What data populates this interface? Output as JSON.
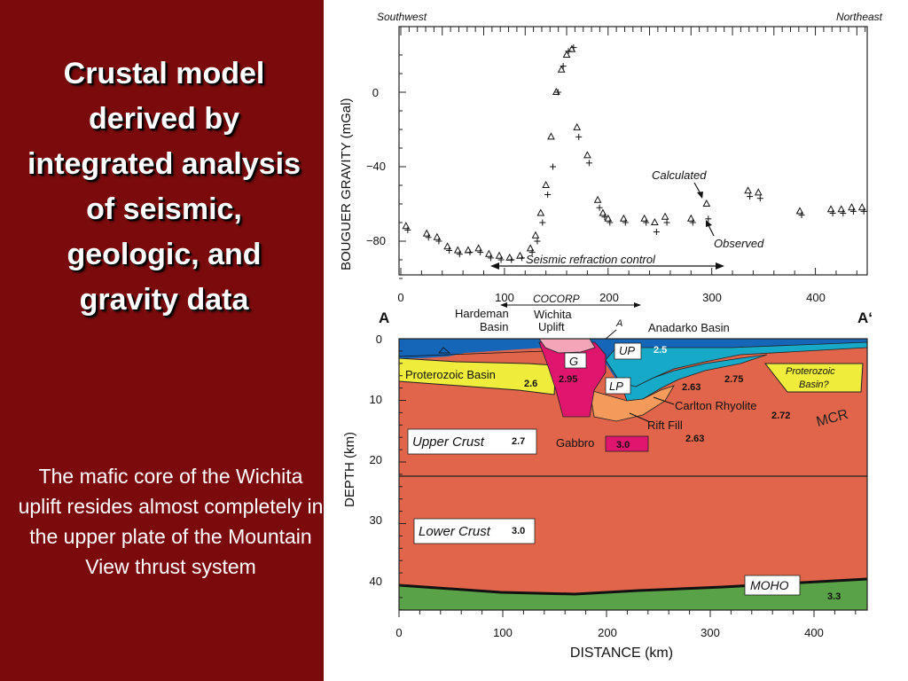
{
  "slide": {
    "title": "Crustal model derived by integrated analysis of seismic, geologic, and gravity data",
    "caption": "The mafic core of the Wichita uplift resides almost completely in the upper plate of the Mountain View thrust system"
  },
  "colors": {
    "background": "#7a0a0c",
    "sediment": "#1565b8",
    "upper_crust": "#e0654a",
    "lower_crust": "#e0654a",
    "mantle": "#5aa247",
    "proterozoic_basin": "#f0ec3c",
    "gabbro": "#e0156e",
    "teal": "#16a9c8",
    "rift_fill": "#f49a5a"
  },
  "gravity_panel": {
    "left_label": "Southwest",
    "right_label": "Northeast",
    "ylabel": "BOUGUER GRAVITY (mGal)",
    "y_ticks": [
      "0",
      "−40",
      "−80"
    ],
    "x_ticks": [
      "0",
      "100",
      "200",
      "300",
      "400"
    ],
    "calculated_label": "Calculated",
    "observed_label": "Observed",
    "seismic_label": "Seismic refraction control",
    "cocorp_label": "COCORP"
  },
  "section_panel": {
    "label_a": "A",
    "label_a_prime": "A‘",
    "hardeman_basin": "Hardeman Basin",
    "wichita_uplift": "Wichita Uplift",
    "point_a": "A",
    "anadarko_basin": "Anadarko Basin",
    "proterozoic_basin": "Proterozoic Basin",
    "proterozoic_basin_q": "Proterozoic Basin?",
    "upper_crust": "Upper Crust",
    "lower_crust": "Lower Crust",
    "moho": "MOHO",
    "mcr": "MCR",
    "gabbro": "Gabbro",
    "g": "G",
    "up": "UP",
    "lp": "LP",
    "carlton_rhyolite": "Carlton Rhyolite",
    "rift_fill": "Rift Fill",
    "densities": {
      "basin": "2.6",
      "g_core": "2.95",
      "up": "2.5",
      "d263a": "2.63",
      "d275": "2.75",
      "d272": "2.72",
      "d263b": "2.63",
      "upper_crust": "2.7",
      "lower_crust": "3.0",
      "gabbro": "3.0",
      "mantle": "3.3"
    },
    "ylabel": "DEPTH (km)",
    "xlabel": "DISTANCE (km)",
    "y_ticks": [
      "0",
      "10",
      "20",
      "30",
      "40"
    ],
    "x_ticks": [
      "0",
      "100",
      "200",
      "300",
      "400"
    ]
  },
  "chart_data": {
    "type": "scatter",
    "xlabel": "",
    "ylabel": "BOUGUER GRAVITY (mGal)",
    "xlim": [
      0,
      450
    ],
    "ylim": [
      -100,
      25
    ],
    "series": [
      {
        "name": "Calculated",
        "x": [
          5,
          25,
          35,
          45,
          55,
          65,
          75,
          85,
          95,
          105,
          115,
          125,
          130,
          135,
          140,
          145,
          150,
          155,
          160,
          165,
          170,
          180,
          190,
          195,
          200,
          215,
          235,
          245,
          255,
          280,
          295,
          335,
          345,
          385,
          415,
          425,
          435,
          445
        ],
        "y": [
          -72,
          -76,
          -78,
          -83,
          -85,
          -85,
          -84,
          -87,
          -88,
          -89,
          -88,
          -84,
          -77,
          -65,
          -50,
          -24,
          0,
          12,
          20,
          23,
          -19,
          -34,
          -58,
          -65,
          -68,
          -68,
          -68,
          -70,
          -67,
          -68,
          -60,
          -53,
          -54,
          -64,
          -63,
          -63,
          -62,
          -62
        ]
      },
      {
        "name": "Observed",
        "x": [
          5,
          25,
          35,
          45,
          55,
          65,
          75,
          85,
          95,
          105,
          115,
          125,
          130,
          135,
          140,
          145,
          150,
          155,
          160,
          165,
          170,
          180,
          190,
          195,
          200,
          215,
          235,
          245,
          255,
          280,
          295,
          335,
          345,
          385,
          415,
          425,
          435,
          445
        ],
        "y": [
          -74,
          -78,
          -80,
          -85,
          -87,
          -86,
          -86,
          -89,
          -90,
          -90,
          -89,
          -86,
          -80,
          -70,
          -55,
          -40,
          0,
          14,
          22,
          24,
          -24,
          -38,
          -62,
          -67,
          -70,
          -70,
          -70,
          -75,
          -70,
          -70,
          -68,
          -56,
          -57,
          -66,
          -65,
          -65,
          -64,
          -64
        ]
      }
    ]
  }
}
